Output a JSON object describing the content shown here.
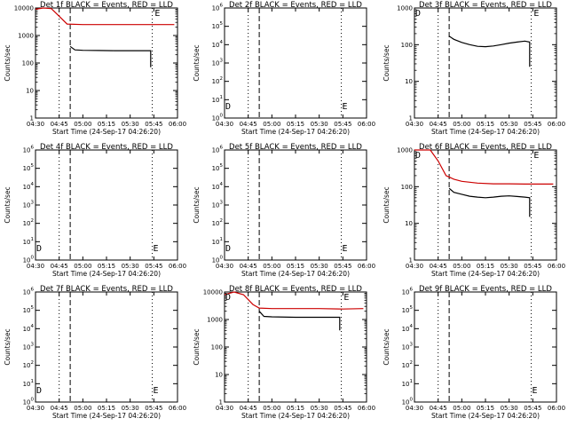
{
  "figure": {
    "background": "#ffffff",
    "events_color": "#000000",
    "lld_color": "#cc0000"
  },
  "chart_data": [
    {
      "type": "line",
      "title": "Det 1f BLACK = Events, RED = LLD",
      "xlabel": "Start Time (24-Sep-17 04:26:20)",
      "ylabel": "Counts/sec",
      "xlim": [
        "04:30",
        "06:00"
      ],
      "x_ticks": [
        "04:30",
        "04:45",
        "05:00",
        "05:15",
        "05:30",
        "05:45",
        "06:00"
      ],
      "yscale": "log",
      "ylim": [
        1,
        10000
      ],
      "y_ticks": [
        "1",
        "10",
        "100",
        "1000",
        "10000"
      ],
      "vlines": [
        {
          "t": "04:45",
          "style": "dotted"
        },
        {
          "t": "04:52",
          "style": "dashed"
        },
        {
          "t": "05:44",
          "style": "dotted"
        }
      ],
      "markers": [
        {
          "label": "E",
          "t": "05:45",
          "y": 10000
        }
      ],
      "series": [
        {
          "name": "Events",
          "points": [
            [
              "04:52",
              400
            ],
            [
              "04:55",
              300
            ],
            [
              "05:00",
              290
            ],
            [
              "05:10",
              285
            ],
            [
              "05:20",
              280
            ],
            [
              "05:30",
              280
            ],
            [
              "05:40",
              280
            ],
            [
              "05:43",
              280
            ],
            [
              "05:43",
              70
            ]
          ]
        },
        {
          "name": "LLD",
          "points": [
            [
              "04:30",
              9000
            ],
            [
              "04:35",
              10000
            ],
            [
              "04:40",
              9500
            ],
            [
              "04:45",
              5000
            ],
            [
              "04:50",
              2600
            ],
            [
              "05:00",
              2500
            ],
            [
              "05:15",
              2500
            ],
            [
              "05:30",
              2500
            ],
            [
              "05:45",
              2500
            ],
            [
              "05:58",
              2500
            ]
          ]
        }
      ]
    },
    {
      "type": "line",
      "title": "Det 2f BLACK = Events, RED = LLD",
      "xlabel": "Start Time (24-Sep-17 04:26:20)",
      "ylabel": "Counts/sec",
      "xlim": [
        "04:30",
        "06:00"
      ],
      "x_ticks": [
        "04:30",
        "04:45",
        "05:00",
        "05:15",
        "05:30",
        "05:45",
        "06:00"
      ],
      "yscale": "log",
      "ylim": [
        1,
        1000000
      ],
      "y_ticks": [
        "10^0",
        "10^1",
        "10^2",
        "10^3",
        "10^4",
        "10^5",
        "10^6"
      ],
      "vlines": [
        {
          "t": "04:45",
          "style": "dotted"
        },
        {
          "t": "04:52",
          "style": "dashed"
        },
        {
          "t": "05:44",
          "style": "dotted"
        }
      ],
      "markers": [
        {
          "label": "D",
          "t": "04:30",
          "y": 3
        },
        {
          "label": "E",
          "t": "05:44",
          "y": 3
        }
      ],
      "series": []
    },
    {
      "type": "line",
      "title": "Det 3f BLACK = Events, RED = LLD",
      "xlabel": "Start Time (24-Sep-17 04:26:20)",
      "ylabel": "Counts/sec",
      "xlim": [
        "04:30",
        "06:00"
      ],
      "x_ticks": [
        "04:30",
        "04:45",
        "05:00",
        "05:15",
        "05:30",
        "05:45",
        "06:00"
      ],
      "yscale": "log",
      "ylim": [
        1,
        1000
      ],
      "y_ticks": [
        "1",
        "10",
        "100",
        "1000"
      ],
      "vlines": [
        {
          "t": "04:45",
          "style": "dotted"
        },
        {
          "t": "04:52",
          "style": "dashed"
        },
        {
          "t": "05:44",
          "style": "dotted"
        }
      ],
      "markers": [
        {
          "label": "D",
          "t": "04:30",
          "y": 1000
        },
        {
          "label": "E",
          "t": "05:45",
          "y": 1000
        }
      ],
      "series": [
        {
          "name": "Events",
          "points": [
            [
              "04:52",
              170
            ],
            [
              "04:55",
              140
            ],
            [
              "05:00",
              115
            ],
            [
              "05:05",
              100
            ],
            [
              "05:10",
              90
            ],
            [
              "05:15",
              88
            ],
            [
              "05:20",
              92
            ],
            [
              "05:25",
              100
            ],
            [
              "05:30",
              110
            ],
            [
              "05:35",
              118
            ],
            [
              "05:40",
              125
            ],
            [
              "05:43",
              118
            ],
            [
              "05:43",
              25
            ]
          ]
        }
      ]
    },
    {
      "type": "line",
      "title": "Det 4f BLACK = Events, RED = LLD",
      "xlabel": "Start Time (24-Sep-17 04:26:20)",
      "ylabel": "Counts/sec",
      "xlim": [
        "04:30",
        "06:00"
      ],
      "x_ticks": [
        "04:30",
        "04:45",
        "05:00",
        "05:15",
        "05:30",
        "05:45",
        "06:00"
      ],
      "yscale": "log",
      "ylim": [
        1,
        1000000
      ],
      "y_ticks": [
        "10^0",
        "10^1",
        "10^2",
        "10^3",
        "10^4",
        "10^5",
        "10^6"
      ],
      "vlines": [
        {
          "t": "04:45",
          "style": "dotted"
        },
        {
          "t": "04:52",
          "style": "dashed"
        },
        {
          "t": "05:44",
          "style": "dotted"
        }
      ],
      "markers": [
        {
          "label": "D",
          "t": "04:30",
          "y": 3
        },
        {
          "label": "E",
          "t": "05:44",
          "y": 3
        }
      ],
      "series": []
    },
    {
      "type": "line",
      "title": "Det 5f BLACK = Events, RED = LLD",
      "xlabel": "Start Time (24-Sep-17 04:26:20)",
      "ylabel": "Counts/sec",
      "xlim": [
        "04:30",
        "06:00"
      ],
      "x_ticks": [
        "04:30",
        "04:45",
        "05:00",
        "05:15",
        "05:30",
        "05:45",
        "06:00"
      ],
      "yscale": "log",
      "ylim": [
        1,
        1000000
      ],
      "y_ticks": [
        "10^0",
        "10^1",
        "10^2",
        "10^3",
        "10^4",
        "10^5",
        "10^6"
      ],
      "vlines": [
        {
          "t": "04:45",
          "style": "dotted"
        },
        {
          "t": "04:52",
          "style": "dashed"
        },
        {
          "t": "05:44",
          "style": "dotted"
        }
      ],
      "markers": [
        {
          "label": "D",
          "t": "04:30",
          "y": 3
        },
        {
          "label": "E",
          "t": "05:44",
          "y": 3
        }
      ],
      "series": []
    },
    {
      "type": "line",
      "title": "Det 6f BLACK = Events, RED = LLD",
      "xlabel": "Start Time (24-Sep-17 04:26:20)",
      "ylabel": "Counts/sec",
      "xlim": [
        "04:30",
        "06:00"
      ],
      "x_ticks": [
        "04:30",
        "04:45",
        "05:00",
        "05:15",
        "05:30",
        "05:45",
        "06:00"
      ],
      "yscale": "log",
      "ylim": [
        1,
        1000
      ],
      "y_ticks": [
        "1",
        "10",
        "100",
        "1000"
      ],
      "vlines": [
        {
          "t": "04:45",
          "style": "dotted"
        },
        {
          "t": "04:52",
          "style": "dashed"
        },
        {
          "t": "05:44",
          "style": "dotted"
        }
      ],
      "markers": [
        {
          "label": "D",
          "t": "04:30",
          "y": 1000
        },
        {
          "label": "E",
          "t": "05:45",
          "y": 1000
        }
      ],
      "series": [
        {
          "name": "Events",
          "points": [
            [
              "04:52",
              90
            ],
            [
              "04:55",
              70
            ],
            [
              "05:00",
              62
            ],
            [
              "05:05",
              55
            ],
            [
              "05:10",
              52
            ],
            [
              "05:15",
              50
            ],
            [
              "05:20",
              52
            ],
            [
              "05:25",
              55
            ],
            [
              "05:30",
              56
            ],
            [
              "05:35",
              54
            ],
            [
              "05:40",
              52
            ],
            [
              "05:43",
              50
            ],
            [
              "05:43",
              15
            ]
          ]
        },
        {
          "name": "LLD",
          "points": [
            [
              "04:30",
              1000
            ],
            [
              "04:40",
              1000
            ],
            [
              "04:45",
              500
            ],
            [
              "04:50",
              200
            ],
            [
              "04:55",
              160
            ],
            [
              "05:00",
              140
            ],
            [
              "05:10",
              125
            ],
            [
              "05:20",
              120
            ],
            [
              "05:30",
              120
            ],
            [
              "05:40",
              118
            ],
            [
              "05:50",
              118
            ],
            [
              "05:58",
              118
            ]
          ]
        }
      ]
    },
    {
      "type": "line",
      "title": "Det 7f BLACK = Events, RED = LLD",
      "xlabel": "Start Time (24-Sep-17 04:26:20)",
      "ylabel": "Counts/sec",
      "xlim": [
        "04:30",
        "06:00"
      ],
      "x_ticks": [
        "04:30",
        "04:45",
        "05:00",
        "05:15",
        "05:30",
        "05:45",
        "06:00"
      ],
      "yscale": "log",
      "ylim": [
        1,
        1000000
      ],
      "y_ticks": [
        "10^0",
        "10^1",
        "10^2",
        "10^3",
        "10^4",
        "10^5",
        "10^6"
      ],
      "vlines": [
        {
          "t": "04:45",
          "style": "dotted"
        },
        {
          "t": "04:52",
          "style": "dashed"
        },
        {
          "t": "05:44",
          "style": "dotted"
        }
      ],
      "markers": [
        {
          "label": "D",
          "t": "04:30",
          "y": 3
        },
        {
          "label": "E",
          "t": "05:44",
          "y": 3
        }
      ],
      "series": []
    },
    {
      "type": "line",
      "title": "Det 8f BLACK = Events, RED = LLD",
      "xlabel": "Start Time (24-Sep-17 04:26:20)",
      "ylabel": "Counts/sec",
      "xlim": [
        "04:30",
        "06:00"
      ],
      "x_ticks": [
        "04:30",
        "04:45",
        "05:00",
        "05:15",
        "05:30",
        "05:45",
        "06:00"
      ],
      "yscale": "log",
      "ylim": [
        1,
        10000
      ],
      "y_ticks": [
        "1",
        "10",
        "100",
        "1000",
        "10000"
      ],
      "vlines": [
        {
          "t": "04:45",
          "style": "dotted"
        },
        {
          "t": "04:52",
          "style": "dashed"
        },
        {
          "t": "05:44",
          "style": "dotted"
        }
      ],
      "markers": [
        {
          "label": "D",
          "t": "04:30",
          "y": 10000
        },
        {
          "label": "E",
          "t": "05:45",
          "y": 10000
        }
      ],
      "series": [
        {
          "name": "Events",
          "points": [
            [
              "04:52",
              2000
            ],
            [
              "04:55",
              1300
            ],
            [
              "05:00",
              1250
            ],
            [
              "05:15",
              1200
            ],
            [
              "05:30",
              1200
            ],
            [
              "05:43",
              1200
            ],
            [
              "05:43",
              400
            ]
          ]
        },
        {
          "name": "LLD",
          "points": [
            [
              "04:30",
              8000
            ],
            [
              "04:36",
              10000
            ],
            [
              "04:42",
              8000
            ],
            [
              "04:48",
              3500
            ],
            [
              "04:52",
              2600
            ],
            [
              "05:00",
              2500
            ],
            [
              "05:15",
              2500
            ],
            [
              "05:30",
              2500
            ],
            [
              "05:45",
              2400
            ],
            [
              "05:58",
              2500
            ]
          ]
        }
      ]
    },
    {
      "type": "line",
      "title": "Det 9f BLACK = Events, RED = LLD",
      "xlabel": "Start Time (24-Sep-17 04:26:20)",
      "ylabel": "Counts/sec",
      "xlim": [
        "04:30",
        "06:00"
      ],
      "x_ticks": [
        "04:30",
        "04:45",
        "05:00",
        "05:15",
        "05:30",
        "05:45",
        "06:00"
      ],
      "yscale": "log",
      "ylim": [
        1,
        1000000
      ],
      "y_ticks": [
        "10^0",
        "10^1",
        "10^2",
        "10^3",
        "10^4",
        "10^5",
        "10^6"
      ],
      "vlines": [
        {
          "t": "04:45",
          "style": "dotted"
        },
        {
          "t": "04:52",
          "style": "dashed"
        },
        {
          "t": "05:44",
          "style": "dotted"
        }
      ],
      "markers": [
        {
          "label": "E",
          "t": "05:44",
          "y": 3
        }
      ],
      "series": []
    }
  ]
}
